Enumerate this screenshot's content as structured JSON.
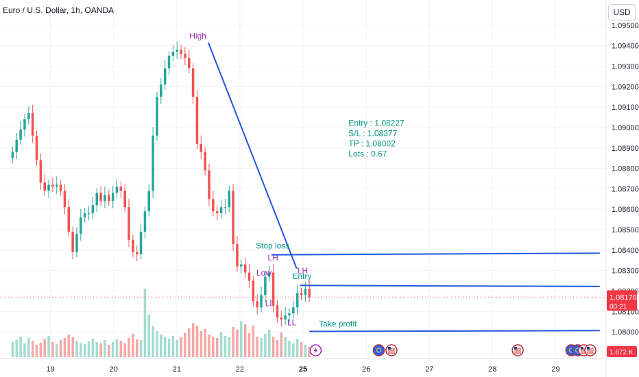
{
  "header": {
    "title": "Euro / U.S. Dollar, 1h, OANDA",
    "currency_button": "USD"
  },
  "price_tag": {
    "price": "1.08170",
    "countdown": "00:21"
  },
  "volume_tag": "1.672 K",
  "colors": {
    "up": "#26a69a",
    "down": "#ef5350",
    "vol_up": "#a3dcd1",
    "vol_down": "#f5a7a6",
    "line": "#2255e0",
    "purple": "#9c27b0",
    "green_text": "#089981",
    "price_tag": "#f23645"
  },
  "chart_data": {
    "type": "candlestick",
    "title": "Euro / U.S. Dollar, 1h, OANDA",
    "ylim": [
      1.0795,
      1.0955
    ],
    "y_ticks": [
      "1.09500",
      "1.09400",
      "1.09300",
      "1.09200",
      "1.09100",
      "1.09000",
      "1.08900",
      "1.08800",
      "1.08700",
      "1.08600",
      "1.08500",
      "1.08400",
      "1.08300",
      "1.08200",
      "1.08100",
      "1.08000"
    ],
    "x_ticks": [
      {
        "label": "19",
        "pos": 8.0
      },
      {
        "label": "20",
        "pos": 18.0
      },
      {
        "label": "21",
        "pos": 28.0
      },
      {
        "label": "22",
        "pos": 38.0
      },
      {
        "label": "25",
        "pos": 48.0
      },
      {
        "label": "26",
        "pos": 58.0
      },
      {
        "label": "27",
        "pos": 68.0
      },
      {
        "label": "28",
        "pos": 78.0
      },
      {
        "label": "29",
        "pos": 88.0
      }
    ],
    "bold_x_tick": "25",
    "price_series": [
      1.0888,
      1.0894,
      1.0899,
      1.0904,
      1.0907,
      1.0896,
      1.0884,
      1.0873,
      1.0869,
      1.0872,
      1.0871,
      1.0872,
      1.0869,
      1.0861,
      1.0849,
      1.0839,
      1.0848,
      1.0856,
      1.0858,
      1.0858,
      1.0862,
      1.0868,
      1.0864,
      1.0867,
      1.0864,
      1.0868,
      1.0871,
      1.0869,
      1.0861,
      1.0845,
      1.0839,
      1.0838,
      1.0849,
      1.0859,
      1.0869,
      1.0896,
      1.0915,
      1.0921,
      1.0929,
      1.0935,
      1.0937,
      1.0938,
      1.0936,
      1.0934,
      1.0929,
      1.0915,
      1.0892,
      1.0888,
      1.0879,
      1.0865,
      1.0859,
      1.0858,
      1.0861,
      1.0861,
      1.0869,
      1.0843,
      1.0832,
      1.0833,
      1.0829,
      1.0825,
      1.0815,
      1.0812,
      1.0818,
      1.0827,
      1.0829,
      1.0813,
      1.0807,
      1.0806,
      1.0808,
      1.0809,
      1.0812,
      1.0819,
      1.0818,
      1.0821,
      1.0817
    ],
    "volume_series": [
      0.22,
      0.25,
      0.3,
      0.2,
      0.28,
      0.24,
      0.18,
      0.21,
      0.26,
      0.31,
      0.22,
      0.19,
      0.25,
      0.28,
      0.33,
      0.29,
      0.24,
      0.21,
      0.19,
      0.23,
      0.27,
      0.22,
      0.2,
      0.25,
      0.18,
      0.22,
      0.26,
      0.24,
      0.2,
      0.28,
      0.34,
      0.26,
      0.25,
      1.0,
      0.62,
      0.45,
      0.38,
      0.33,
      0.3,
      0.27,
      0.31,
      0.25,
      0.29,
      0.35,
      0.42,
      0.5,
      0.46,
      0.38,
      0.41,
      0.33,
      0.3,
      0.28,
      0.36,
      0.31,
      0.29,
      0.44,
      0.4,
      0.52,
      0.48,
      0.35,
      0.46,
      0.3,
      0.28,
      0.34,
      0.4,
      0.3,
      0.25,
      0.36,
      0.29,
      0.24,
      0.2,
      0.27,
      0.22,
      0.18,
      0.15
    ],
    "info": [
      "Entry : 1.08227",
      "S/L : 1.08377",
      "TP : 1.08002",
      "Lots : 0.67"
    ],
    "annotations": [
      {
        "text": "High",
        "x": 30.0,
        "y": 1.09435,
        "color": "purple"
      },
      {
        "text": "Low",
        "x": 40.6,
        "y": 1.08276,
        "color": "purple"
      },
      {
        "text": "LH",
        "x": 42.4,
        "y": 1.08349,
        "color": "purple"
      },
      {
        "text": "LL",
        "x": 42.0,
        "y": 1.08126,
        "color": "purple"
      },
      {
        "text": "LL",
        "x": 45.5,
        "y": 1.08033,
        "color": "purple"
      },
      {
        "text": "LH",
        "x": 47.1,
        "y": 1.08286,
        "color": "purple"
      },
      {
        "text": "Stop loss",
        "x": 40.5,
        "y": 1.08408,
        "color": "green"
      },
      {
        "text": "Entry",
        "x": 46.3,
        "y": 1.08258,
        "color": "green"
      },
      {
        "text": "Take profit",
        "x": 50.5,
        "y": 1.08025,
        "color": "green"
      }
    ],
    "trend_line": {
      "from": [
        33.0,
        1.09415
      ],
      "to": [
        47.0,
        1.08309
      ]
    },
    "levels": [
      {
        "name": "stop-loss",
        "from": [
          43.0,
          1.08377
        ],
        "to": [
          95.0,
          1.08385
        ]
      },
      {
        "name": "entry",
        "from": [
          47.5,
          1.08227
        ],
        "to": [
          95.0,
          1.08222
        ]
      },
      {
        "name": "take-profit",
        "from": [
          49.0,
          1.08002
        ],
        "to": [
          95.0,
          1.08006
        ]
      }
    ],
    "last_price": 1.0817,
    "event_icons": [
      {
        "x": 50.0,
        "type": "lightning"
      },
      {
        "x": 60.0,
        "type": "globe"
      },
      {
        "x": 62.0,
        "type": "us-flag"
      },
      {
        "x": 82.0,
        "type": "us-flag"
      },
      {
        "x": 90.5,
        "type": "globe"
      },
      {
        "x": 91.5,
        "type": "globe"
      },
      {
        "x": 92.5,
        "type": "us-flag"
      },
      {
        "x": 93.5,
        "type": "us-flag"
      }
    ]
  }
}
